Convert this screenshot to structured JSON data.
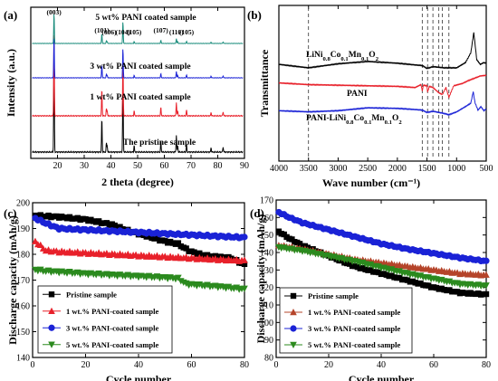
{
  "chart_data": [
    {
      "panel": "(a)",
      "type": "line",
      "xlabel": "2 theta (degree)",
      "ylabel": "Intensity (a.u.)",
      "xlim": [
        10,
        90
      ],
      "xticks": [
        20,
        30,
        40,
        50,
        60,
        70,
        80,
        90
      ],
      "yticks": "none",
      "peaks": [
        {
          "x": 18.7,
          "h": 1.0,
          "label": "(003)"
        },
        {
          "x": 36.6,
          "h": 0.32,
          "label": "(101)"
        },
        {
          "x": 38.3,
          "h": 0.08,
          "label": "(006)"
        },
        {
          "x": 38.6,
          "h": 0.06,
          "label": ""
        },
        {
          "x": 44.5,
          "h": 0.72,
          "label": "(104)"
        },
        {
          "x": 48.7,
          "h": 0.06,
          "label": "(105)"
        },
        {
          "x": 58.7,
          "h": 0.1,
          "label": "(107)"
        },
        {
          "x": 64.5,
          "h": 0.16,
          "label": "(110)"
        },
        {
          "x": 65.0,
          "h": 0.06,
          "label": ""
        },
        {
          "x": 68.3,
          "h": 0.07,
          "label": "(105)"
        },
        {
          "x": 77.5,
          "h": 0.04,
          "label": ""
        },
        {
          "x": 82.0,
          "h": 0.05,
          "label": ""
        }
      ],
      "series": [
        {
          "name": "The pristine sample",
          "color": "#000000"
        },
        {
          "name": "1 wt% PANI coated sample",
          "color": "#e8202a"
        },
        {
          "name": "3 wt% PANI coated sample",
          "color": "#1a22d6"
        },
        {
          "name": "5 wt% PANI coated sample",
          "color": "#1a8c7c"
        }
      ]
    },
    {
      "panel": "(b)",
      "type": "line",
      "xlabel": "Wave number (cm⁻¹)",
      "ylabel": "Transmittance",
      "xlim": [
        4000,
        500
      ],
      "xticks": [
        4000,
        3500,
        3000,
        2500,
        2000,
        1500,
        1000,
        500
      ],
      "reference_lines": [
        3500,
        1580,
        1490,
        1400,
        1300,
        1240,
        1130
      ],
      "series": [
        {
          "name": "LiNi0.8Co0.1Mn0.1O2",
          "color": "#000000",
          "points": [
            [
              4000,
              0.42
            ],
            [
              3500,
              0.36
            ],
            [
              3000,
              0.43
            ],
            [
              2500,
              0.47
            ],
            [
              2000,
              0.44
            ],
            [
              1700,
              0.41
            ],
            [
              1580,
              0.4
            ],
            [
              1500,
              0.35
            ],
            [
              1400,
              0.38
            ],
            [
              1200,
              0.36
            ],
            [
              1000,
              0.36
            ],
            [
              850,
              0.45
            ],
            [
              760,
              0.62
            ],
            [
              710,
              0.97
            ],
            [
              660,
              0.5
            ],
            [
              600,
              0.42
            ],
            [
              540,
              0.45
            ],
            [
              500,
              0.44
            ]
          ]
        },
        {
          "name": "PANI",
          "color": "#e8202a",
          "points": [
            [
              4000,
              0.1
            ],
            [
              3500,
              0.07
            ],
            [
              3000,
              0.06
            ],
            [
              2500,
              0.05
            ],
            [
              2000,
              0.04
            ],
            [
              1700,
              0.02
            ],
            [
              1600,
              0.07
            ],
            [
              1580,
              -0.04
            ],
            [
              1560,
              0.06
            ],
            [
              1500,
              0.05
            ],
            [
              1490,
              -0.06
            ],
            [
              1460,
              0.04
            ],
            [
              1400,
              0.02
            ],
            [
              1300,
              -0.07
            ],
            [
              1240,
              -0.1
            ],
            [
              1180,
              0.02
            ],
            [
              1130,
              -0.15
            ],
            [
              1050,
              0.05
            ],
            [
              900,
              0.09
            ],
            [
              800,
              0.14
            ],
            [
              700,
              0.18
            ],
            [
              600,
              0.22
            ],
            [
              500,
              0.23
            ]
          ]
        },
        {
          "name": "PANI-LiNi0.8Co0.1Mn0.1O2",
          "color": "#1a22d6",
          "points": [
            [
              4000,
              -0.38
            ],
            [
              3500,
              -0.4
            ],
            [
              3000,
              -0.38
            ],
            [
              2500,
              -0.33
            ],
            [
              2000,
              -0.34
            ],
            [
              1700,
              -0.36
            ],
            [
              1580,
              -0.37
            ],
            [
              1500,
              -0.41
            ],
            [
              1400,
              -0.39
            ],
            [
              1300,
              -0.41
            ],
            [
              1240,
              -0.42
            ],
            [
              1130,
              -0.45
            ],
            [
              1000,
              -0.4
            ],
            [
              850,
              -0.31
            ],
            [
              760,
              -0.25
            ],
            [
              720,
              -0.05
            ],
            [
              690,
              -0.24
            ],
            [
              640,
              -0.37
            ],
            [
              590,
              -0.31
            ],
            [
              540,
              -0.38
            ],
            [
              500,
              -0.35
            ]
          ]
        }
      ]
    },
    {
      "panel": "(c)",
      "type": "line",
      "xlabel": "Cycle number",
      "ylabel": "Discharge capacity (mAh/g)",
      "xlim": [
        0,
        80
      ],
      "ylim": [
        140,
        200
      ],
      "xticks": [
        0,
        20,
        40,
        60,
        80
      ],
      "yticks": [
        140,
        150,
        160,
        170,
        180,
        190,
        200
      ],
      "legend_position": "lower-left",
      "series": [
        {
          "name": "Pristine sample",
          "color": "#000000",
          "marker": "square",
          "points": [
            [
              1,
              195
            ],
            [
              10,
              194.5
            ],
            [
              20,
              193.5
            ],
            [
              30,
              191.5
            ],
            [
              35,
              189.5
            ],
            [
              40,
              188
            ],
            [
              45,
              186.5
            ],
            [
              50,
              185
            ],
            [
              55,
              184
            ],
            [
              58,
              182
            ],
            [
              60,
              181
            ],
            [
              65,
              179.5
            ],
            [
              70,
              179
            ],
            [
              75,
              178.5
            ],
            [
              80,
              176
            ]
          ]
        },
        {
          "name": "1 wt.% PANI-coated sample",
          "color": "#e8202a",
          "marker": "triangle-up",
          "points": [
            [
              1,
              185
            ],
            [
              5,
              181.5
            ],
            [
              10,
              181
            ],
            [
              20,
              180.5
            ],
            [
              30,
              180
            ],
            [
              40,
              179.5
            ],
            [
              50,
              179
            ],
            [
              60,
              178.5
            ],
            [
              70,
              178
            ],
            [
              80,
              177.5
            ]
          ]
        },
        {
          "name": "3 wt.% PANI-coated sample",
          "color": "#1a22d6",
          "marker": "circle",
          "points": [
            [
              1,
              194
            ],
            [
              5,
              192
            ],
            [
              10,
              190
            ],
            [
              20,
              189.5
            ],
            [
              30,
              189
            ],
            [
              40,
              188.5
            ],
            [
              50,
              188
            ],
            [
              60,
              187.5
            ],
            [
              70,
              187
            ],
            [
              80,
              186.5
            ]
          ]
        },
        {
          "name": "5 wt.% PANI-coated sample",
          "color": "#2b8a1e",
          "marker": "triangle-down",
          "points": [
            [
              1,
              174
            ],
            [
              5,
              173.5
            ],
            [
              10,
              173.2
            ],
            [
              20,
              172.5
            ],
            [
              30,
              172
            ],
            [
              40,
              171.5
            ],
            [
              50,
              171
            ],
            [
              55,
              170.6
            ],
            [
              58,
              168.5
            ],
            [
              60,
              168.3
            ],
            [
              70,
              167.5
            ],
            [
              80,
              166.5
            ]
          ]
        }
      ]
    },
    {
      "panel": "(d)",
      "type": "line",
      "xlabel": "Cycle number",
      "ylabel": "Discharge capacity (mAh/g)",
      "xlim": [
        0,
        80
      ],
      "ylim": [
        80,
        170
      ],
      "xticks": [
        0,
        20,
        40,
        60,
        80
      ],
      "yticks": [
        80,
        90,
        100,
        110,
        120,
        130,
        140,
        150,
        160,
        170
      ],
      "legend_position": "lower-left",
      "series": [
        {
          "name": "Pristine sample",
          "color": "#000000",
          "marker": "square",
          "points": [
            [
              1,
              152
            ],
            [
              5,
              148
            ],
            [
              10,
              144
            ],
            [
              20,
              138
            ],
            [
              30,
              132
            ],
            [
              40,
              128
            ],
            [
              50,
              124
            ],
            [
              60,
              120
            ],
            [
              70,
              117
            ],
            [
              80,
              116
            ]
          ]
        },
        {
          "name": "1 wt.% PANI-coated sample",
          "color": "#b5442a",
          "marker": "triangle-up",
          "points": [
            [
              1,
              144
            ],
            [
              10,
              142
            ],
            [
              20,
              139
            ],
            [
              30,
              136
            ],
            [
              40,
              134
            ],
            [
              50,
              132
            ],
            [
              60,
              130
            ],
            [
              70,
              128
            ],
            [
              80,
              127
            ]
          ]
        },
        {
          "name": "3 wt.% PANI-coated sample",
          "color": "#1a22d6",
          "marker": "circle",
          "points": [
            [
              1,
              163
            ],
            [
              5,
              160
            ],
            [
              10,
              157
            ],
            [
              20,
              153
            ],
            [
              30,
              149
            ],
            [
              40,
              145
            ],
            [
              50,
              142
            ],
            [
              60,
              139.5
            ],
            [
              70,
              137
            ],
            [
              80,
              135
            ]
          ]
        },
        {
          "name": "5 wt.% PANI-coated sample",
          "color": "#2b8a1e",
          "marker": "triangle-down",
          "points": [
            [
              1,
              143
            ],
            [
              10,
              141
            ],
            [
              20,
              138
            ],
            [
              30,
              135
            ],
            [
              40,
              131.5
            ],
            [
              50,
              128
            ],
            [
              60,
              125
            ],
            [
              70,
              122
            ],
            [
              80,
              121
            ]
          ]
        }
      ]
    }
  ]
}
